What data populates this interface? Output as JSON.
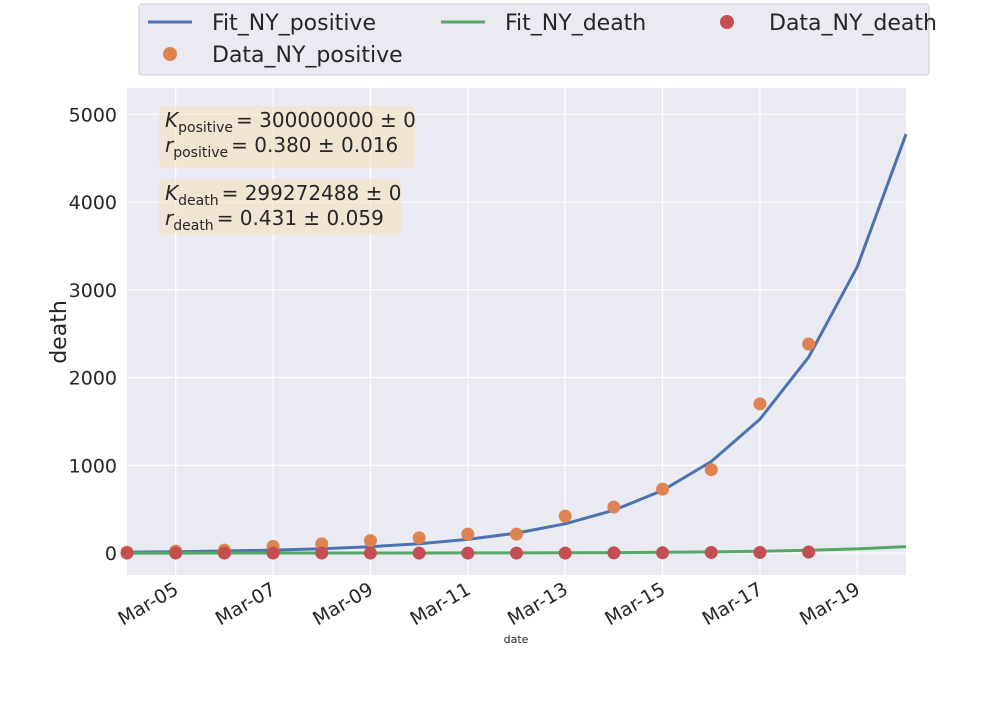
{
  "chart_data": {
    "type": "line",
    "x": [
      "Mar-04",
      "Mar-05",
      "Mar-06",
      "Mar-07",
      "Mar-08",
      "Mar-09",
      "Mar-10",
      "Mar-11",
      "Mar-12",
      "Mar-13",
      "Mar-14",
      "Mar-15",
      "Mar-16",
      "Mar-17",
      "Mar-18",
      "Mar-19",
      "Mar-20"
    ],
    "x_ticks": [
      "Mar-05",
      "Mar-07",
      "Mar-09",
      "Mar-11",
      "Mar-13",
      "Mar-15",
      "Mar-17",
      "Mar-19"
    ],
    "y_ticks": [
      0,
      1000,
      2000,
      3000,
      4000,
      5000
    ],
    "ylim": [
      -250,
      5300
    ],
    "xlabel": "date",
    "ylabel": "death",
    "grid": true,
    "legend_position": "top",
    "series": [
      {
        "name": "Fit_NY_positive",
        "kind": "line",
        "color": "#4c72b0",
        "x": [
          "Mar-04",
          "Mar-05",
          "Mar-06",
          "Mar-07",
          "Mar-08",
          "Mar-09",
          "Mar-10",
          "Mar-11",
          "Mar-12",
          "Mar-13",
          "Mar-14",
          "Mar-15",
          "Mar-16",
          "Mar-17",
          "Mar-18",
          "Mar-19",
          "Mar-20"
        ],
        "values": [
          11,
          16,
          23,
          34,
          50,
          73,
          107,
          156,
          228,
          334,
          488,
          714,
          1044,
          1526,
          2232,
          3264,
          4774
        ]
      },
      {
        "name": "Fit_NY_death",
        "kind": "line",
        "color": "#55a868",
        "x": [
          "Mar-04",
          "Mar-05",
          "Mar-06",
          "Mar-07",
          "Mar-08",
          "Mar-09",
          "Mar-10",
          "Mar-11",
          "Mar-12",
          "Mar-13",
          "Mar-14",
          "Mar-15",
          "Mar-16",
          "Mar-17",
          "Mar-18",
          "Mar-19",
          "Mar-20"
        ],
        "values": [
          0.1,
          0.1,
          0.2,
          0.3,
          0.4,
          0.6,
          1,
          1.5,
          2.3,
          3.6,
          5.5,
          8.5,
          13,
          20,
          31,
          48,
          74
        ]
      },
      {
        "name": "Data_NY_positive",
        "kind": "scatter",
        "color": "#dd8452",
        "x": [
          "Mar-04",
          "Mar-05",
          "Mar-06",
          "Mar-07",
          "Mar-08",
          "Mar-09",
          "Mar-10",
          "Mar-11",
          "Mar-12",
          "Mar-13",
          "Mar-14",
          "Mar-15",
          "Mar-16",
          "Mar-17",
          "Mar-18"
        ],
        "values": [
          11,
          22,
          33,
          76,
          105,
          142,
          173,
          216,
          216,
          421,
          524,
          729,
          950,
          1700,
          2382
        ]
      },
      {
        "name": "Data_NY_death",
        "kind": "scatter",
        "color": "#c44e52",
        "x": [
          "Mar-04",
          "Mar-05",
          "Mar-06",
          "Mar-07",
          "Mar-08",
          "Mar-09",
          "Mar-10",
          "Mar-11",
          "Mar-12",
          "Mar-13",
          "Mar-14",
          "Mar-15",
          "Mar-16",
          "Mar-17",
          "Mar-18"
        ],
        "values": [
          0,
          0,
          0,
          0,
          0,
          0,
          0,
          0,
          0,
          0,
          2,
          3,
          7,
          7,
          12
        ]
      }
    ],
    "annotations": [
      {
        "lines": [
          {
            "var": "K",
            "sub": "positive",
            "text": "= 300000000 ± 0"
          },
          {
            "var": "r",
            "sub": "positive",
            "text": "= 0.380 ± 0.016"
          }
        ]
      },
      {
        "lines": [
          {
            "var": "K",
            "sub": "death",
            "text": "= 299272488 ± 0"
          },
          {
            "var": "r",
            "sub": "death",
            "text": "= 0.431 ± 0.059"
          }
        ]
      }
    ]
  }
}
